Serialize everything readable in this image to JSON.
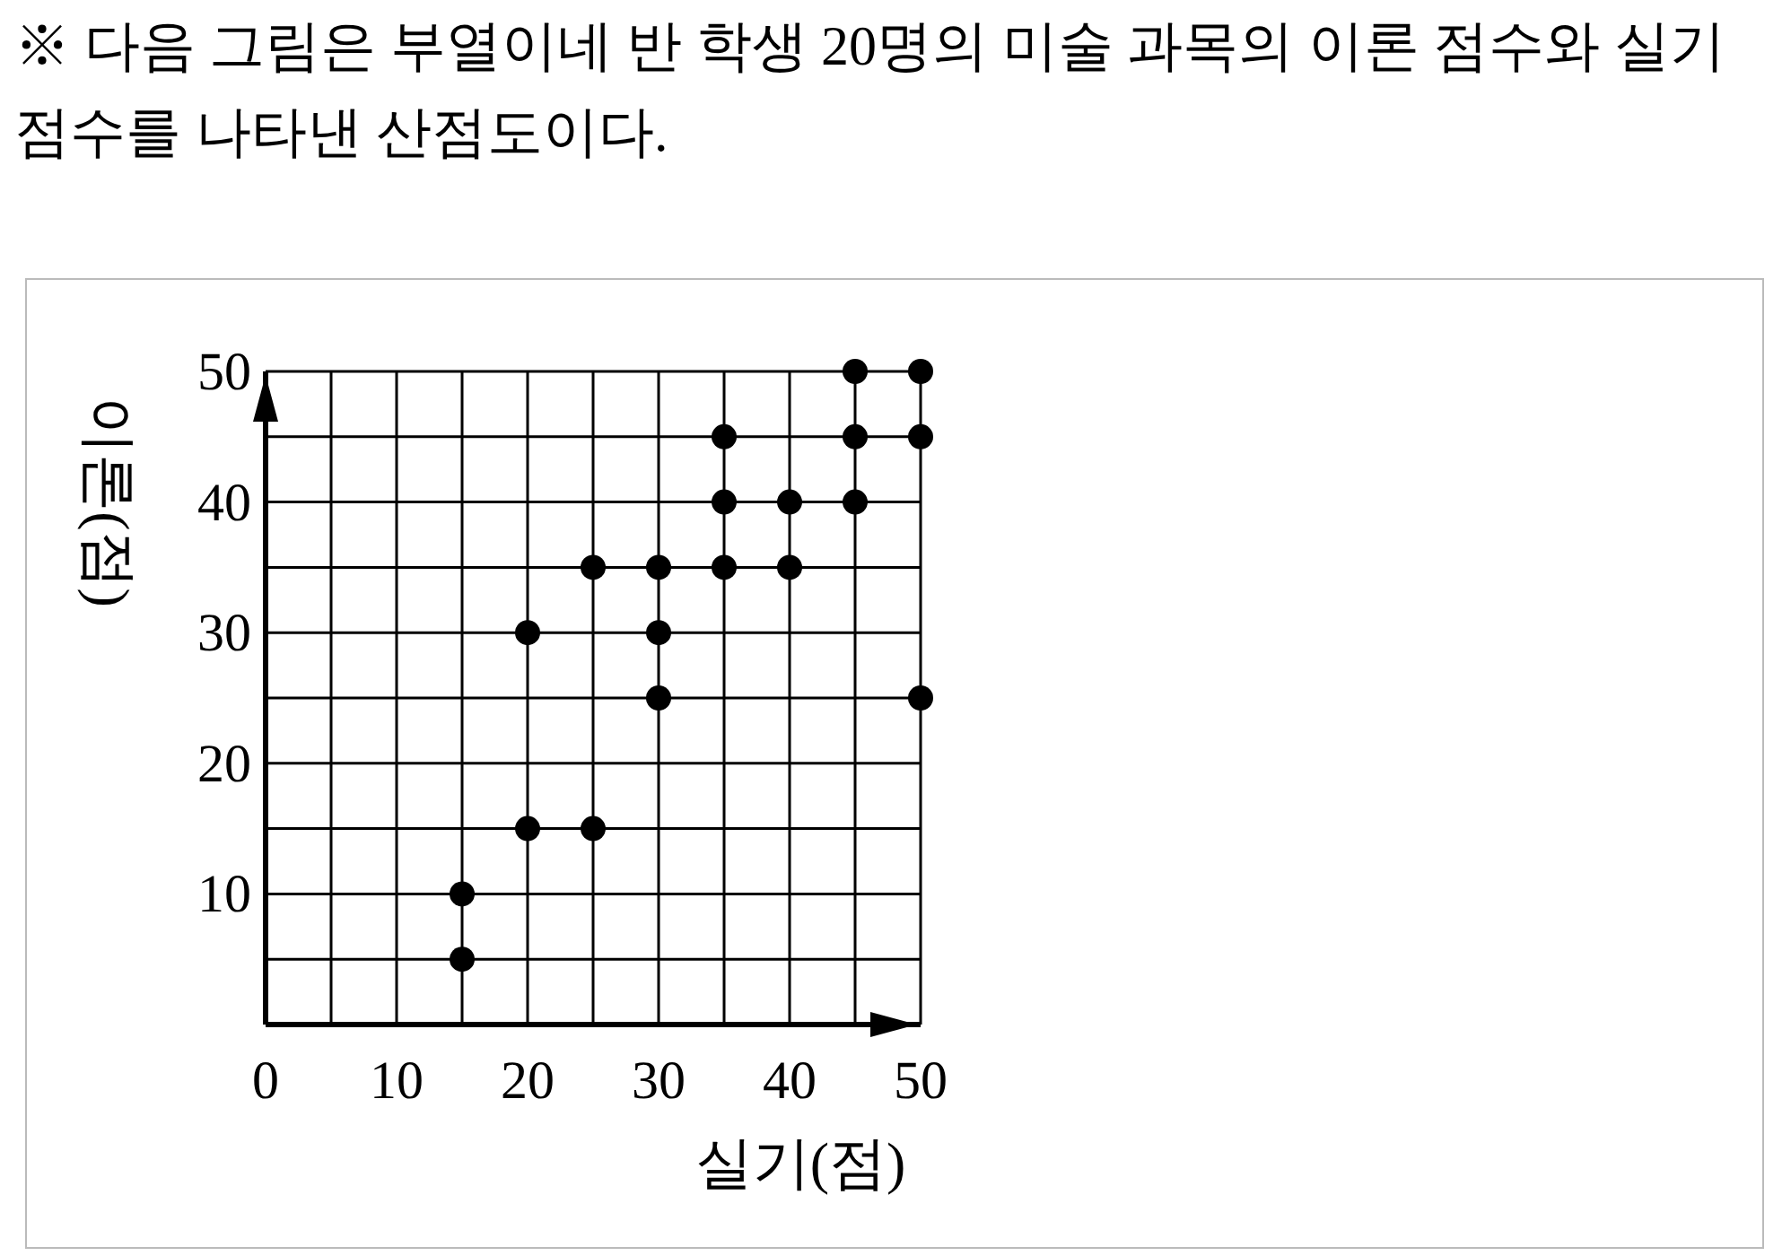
{
  "chart_data": {
    "type": "scatter",
    "title": "※ 다음 그림은 부열이네 반 학생 20명의 미술 과목의 이론 점수와 실기 점수를 나타낸 산점도이다.",
    "xlabel": "실기(점)",
    "ylabel": "이론(점)",
    "x": [
      15,
      15,
      20,
      20,
      25,
      25,
      30,
      30,
      30,
      35,
      35,
      35,
      40,
      40,
      45,
      45,
      45,
      50,
      50,
      50
    ],
    "values": [
      10,
      5,
      30,
      15,
      35,
      15,
      35,
      30,
      25,
      45,
      40,
      35,
      40,
      35,
      50,
      45,
      40,
      50,
      45,
      25
    ],
    "color": "#000000",
    "marker": "circle",
    "grid": true,
    "xlim": [
      0,
      50
    ],
    "ylim": [
      0,
      50
    ],
    "xticks": [
      0,
      {
        "value": 5,
        "label": null
      },
      10,
      {
        "value": 15,
        "label": null
      },
      20,
      {
        "value": 25,
        "label": null
      },
      30,
      {
        "value": 35,
        "label": null
      },
      40,
      {
        "value": 45,
        "label": null
      },
      50
    ],
    "yticks": [
      {
        "value": 0,
        "label": null
      },
      {
        "value": 5,
        "label": null
      },
      10,
      {
        "value": 15,
        "label": null
      },
      20,
      {
        "value": 25,
        "label": null
      },
      30,
      {
        "value": 35,
        "label": null
      },
      40,
      {
        "value": 45,
        "label": null
      },
      50
    ]
  }
}
